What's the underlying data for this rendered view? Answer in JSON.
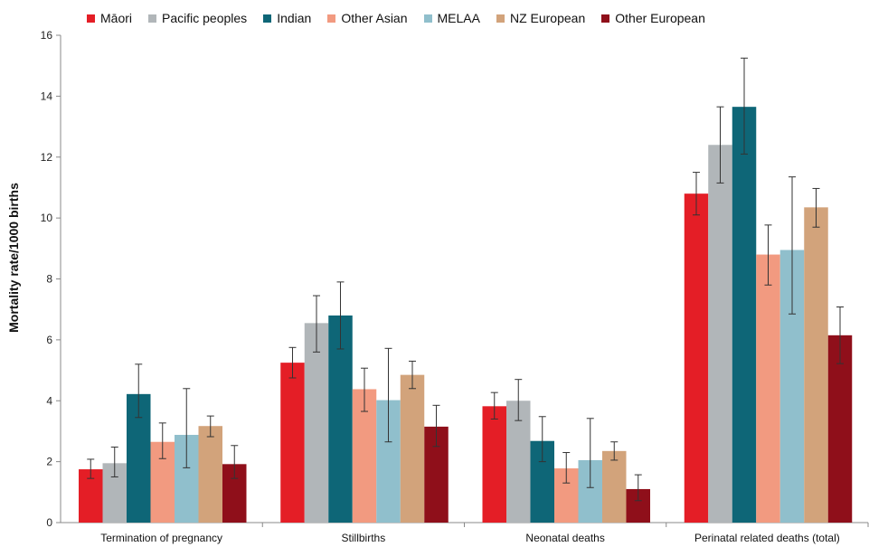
{
  "chart_data": {
    "type": "bar",
    "title": "",
    "xlabel": "",
    "ylabel": "Mortality rate/1000 births",
    "ylim": [
      0,
      16
    ],
    "yticks": [
      0,
      2,
      4,
      6,
      8,
      10,
      12,
      14,
      16
    ],
    "grid": false,
    "legend_position": "top",
    "error_bars": true,
    "categories": [
      "Termination of pregnancy",
      "Stillbirths",
      "Neonatal deaths",
      "Perinatal related deaths (total)"
    ],
    "series": [
      {
        "name": "Māori",
        "color": "#e41e26",
        "values": [
          1.75,
          5.25,
          3.82,
          10.8
        ],
        "err_low": [
          1.45,
          4.75,
          3.4,
          10.1
        ],
        "err_high": [
          2.08,
          5.75,
          4.27,
          11.5
        ]
      },
      {
        "name": "Pacific peoples",
        "color": "#b1b6b9",
        "values": [
          1.95,
          6.55,
          4.0,
          12.4
        ],
        "err_low": [
          1.5,
          5.6,
          3.35,
          11.15
        ],
        "err_high": [
          2.48,
          7.45,
          4.7,
          13.65
        ]
      },
      {
        "name": "Indian",
        "color": "#0e6677",
        "values": [
          4.22,
          6.8,
          2.68,
          13.65
        ],
        "err_low": [
          3.45,
          5.7,
          2.0,
          12.1
        ],
        "err_high": [
          5.2,
          7.9,
          3.48,
          15.25
        ]
      },
      {
        "name": "Other Asian",
        "color": "#f29a80",
        "values": [
          2.65,
          4.38,
          1.78,
          8.8
        ],
        "err_low": [
          2.1,
          3.65,
          1.3,
          7.8
        ],
        "err_high": [
          3.27,
          5.07,
          2.3,
          9.77
        ]
      },
      {
        "name": "MELAA",
        "color": "#90bfcc",
        "values": [
          2.88,
          4.02,
          2.05,
          8.95
        ],
        "err_low": [
          1.8,
          2.65,
          1.15,
          6.85
        ],
        "err_high": [
          4.4,
          5.72,
          3.42,
          11.35
        ]
      },
      {
        "name": "NZ European",
        "color": "#d2a37b",
        "values": [
          3.17,
          4.85,
          2.35,
          10.35
        ],
        "err_low": [
          2.82,
          4.4,
          2.05,
          9.7
        ],
        "err_high": [
          3.5,
          5.3,
          2.65,
          10.97
        ]
      },
      {
        "name": "Other European",
        "color": "#8f0f1a",
        "values": [
          1.92,
          3.15,
          1.1,
          6.15
        ],
        "err_low": [
          1.45,
          2.5,
          0.72,
          5.22
        ],
        "err_high": [
          2.53,
          3.85,
          1.57,
          7.08
        ]
      }
    ]
  }
}
